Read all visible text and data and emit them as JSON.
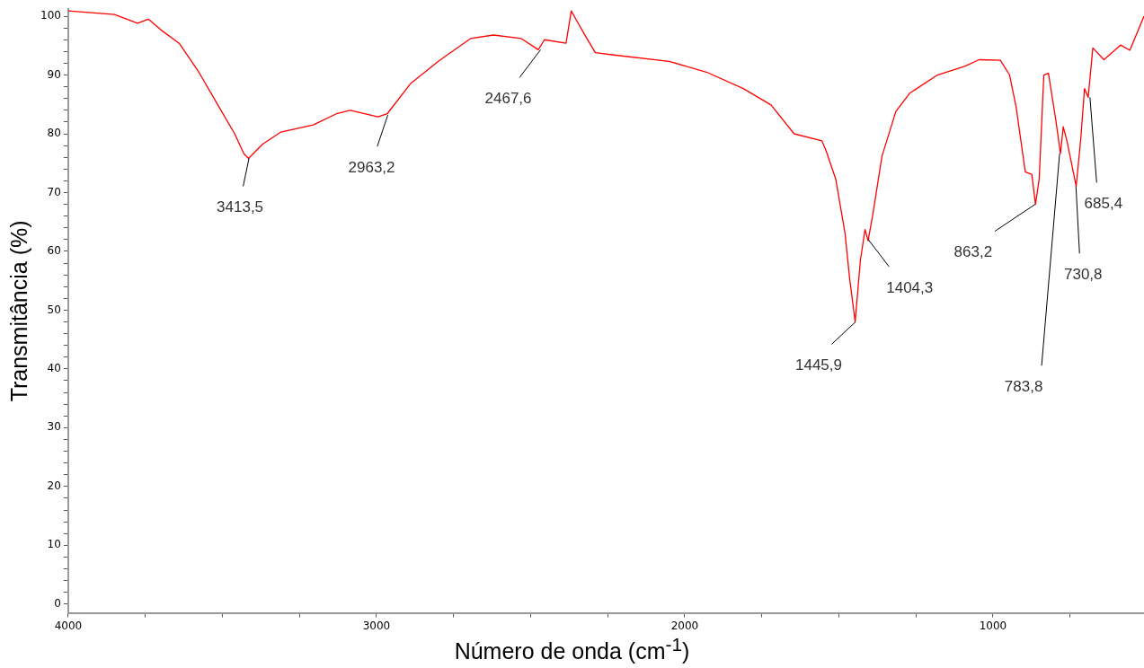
{
  "chart_data": {
    "type": "line",
    "xlabel": "Número de onda (cm$^{-1}$)",
    "ylabel": "Transmitância (%)",
    "x": [
      4000,
      3850,
      3775,
      3740,
      3700,
      3640,
      3580,
      3520,
      3460,
      3430,
      3415,
      3370,
      3310,
      3205,
      3130,
      3085,
      2995,
      2965,
      2890,
      2800,
      2695,
      2620,
      2530,
      2475,
      2455,
      2385,
      2368,
      2350,
      2325,
      2290,
      2230,
      2050,
      1930,
      1810,
      1720,
      1645,
      1555,
      1540,
      1510,
      1480,
      1465,
      1447,
      1430,
      1415,
      1405,
      1390,
      1360,
      1315,
      1270,
      1180,
      1090,
      1045,
      976,
      946,
      925,
      895,
      874,
      862,
      850,
      835,
      820,
      796,
      781,
      772,
      760,
      730,
      715,
      703,
      691,
      676,
      640,
      586,
      556,
      510
    ],
    "series": [
      {
        "color": "#ff0000",
        "values": [
          100.9,
          100.3,
          98.8,
          99.5,
          97.7,
          95.4,
          90.8,
          85.4,
          80,
          76.6,
          75.8,
          78.2,
          80.3,
          81.5,
          83.4,
          84,
          82.9,
          83.4,
          88.5,
          92.3,
          96.2,
          96.8,
          96.2,
          94.3,
          96,
          95.4,
          100.9,
          99.2,
          96.9,
          93.8,
          93.4,
          92.3,
          90.5,
          87.7,
          84.9,
          80,
          78.8,
          76.9,
          72.3,
          63.1,
          55.4,
          48,
          58.5,
          63.7,
          61.8,
          66.2,
          76.2,
          83.8,
          86.9,
          90,
          91.5,
          92.6,
          92.5,
          90,
          84.6,
          73.5,
          73.1,
          68,
          72.3,
          90,
          90.3,
          82.3,
          76.6,
          81.2,
          78.8,
          71.1,
          79.2,
          87.7,
          86.2,
          94.6,
          92.6,
          95.1,
          94.2,
          100
        ]
      }
    ],
    "xlim": [
      4000,
      510
    ],
    "xticks": [
      4000,
      {
        "value": 3750,
        "label": null
      },
      {
        "value": 3500,
        "label": null
      },
      {
        "value": 3250,
        "label": null
      },
      3000,
      {
        "value": 2750,
        "label": null
      },
      {
        "value": 2500,
        "label": null
      },
      {
        "value": 2250,
        "label": null
      },
      2000,
      {
        "value": 1750,
        "label": null
      },
      {
        "value": 1500,
        "label": null
      },
      {
        "value": 1250,
        "label": null
      },
      1000,
      {
        "value": 750,
        "label": null
      }
    ],
    "ylim": [
      -1.5,
      101.2
    ],
    "yticks": [
      0,
      {
        "value": 2,
        "label": null
      },
      {
        "value": 4,
        "label": null
      },
      {
        "value": 6,
        "label": null
      },
      {
        "value": 8,
        "label": null
      },
      10,
      {
        "value": 12,
        "label": null
      },
      {
        "value": 14,
        "label": null
      },
      {
        "value": 16,
        "label": null
      },
      {
        "value": 18,
        "label": null
      },
      20,
      {
        "value": 22,
        "label": null
      },
      {
        "value": 24,
        "label": null
      },
      {
        "value": 26,
        "label": null
      },
      {
        "value": 28,
        "label": null
      },
      30,
      {
        "value": 32,
        "label": null
      },
      {
        "value": 34,
        "label": null
      },
      {
        "value": 36,
        "label": null
      },
      {
        "value": 38,
        "label": null
      },
      40,
      {
        "value": 42,
        "label": null
      },
      {
        "value": 44,
        "label": null
      },
      {
        "value": 46,
        "label": null
      },
      {
        "value": 48,
        "label": null
      },
      50,
      {
        "value": 52,
        "label": null
      },
      {
        "value": 54,
        "label": null
      },
      {
        "value": 56,
        "label": null
      },
      {
        "value": 58,
        "label": null
      },
      60,
      {
        "value": 62,
        "label": null
      },
      {
        "value": 64,
        "label": null
      },
      {
        "value": 66,
        "label": null
      },
      {
        "value": 68,
        "label": null
      },
      70,
      {
        "value": 72,
        "label": null
      },
      {
        "value": 74,
        "label": null
      },
      {
        "value": 76,
        "label": null
      },
      {
        "value": 78,
        "label": null
      },
      80,
      {
        "value": 82,
        "label": null
      },
      {
        "value": 84,
        "label": null
      },
      {
        "value": 86,
        "label": null
      },
      {
        "value": 88,
        "label": null
      },
      90,
      {
        "value": 92,
        "label": null
      },
      {
        "value": 94,
        "label": null
      },
      {
        "value": 96,
        "label": null
      },
      {
        "value": 98,
        "label": null
      },
      100
    ],
    "grid": false,
    "legend": false,
    "marker": "none",
    "line_style": "solid",
    "annotations": [
      {
        "text": "3413,5",
        "x": 3413.5,
        "y": 75.8
      },
      {
        "text": "2963,2",
        "x": 2963.2,
        "y": 83.2
      },
      {
        "text": "2467,6",
        "x": 2467.6,
        "y": 94.3
      },
      {
        "text": "1445,9",
        "x": 1445.9,
        "y": 48
      },
      {
        "text": "1404,3",
        "x": 1404.3,
        "y": 62
      },
      {
        "text": "863,2",
        "x": 863.2,
        "y": 68
      },
      {
        "text": "783,8",
        "x": 783.8,
        "y": 76.6
      },
      {
        "text": "730,8",
        "x": 730.8,
        "y": 71.1
      },
      {
        "text": "685,4",
        "x": 685.4,
        "y": 86.2
      }
    ]
  }
}
